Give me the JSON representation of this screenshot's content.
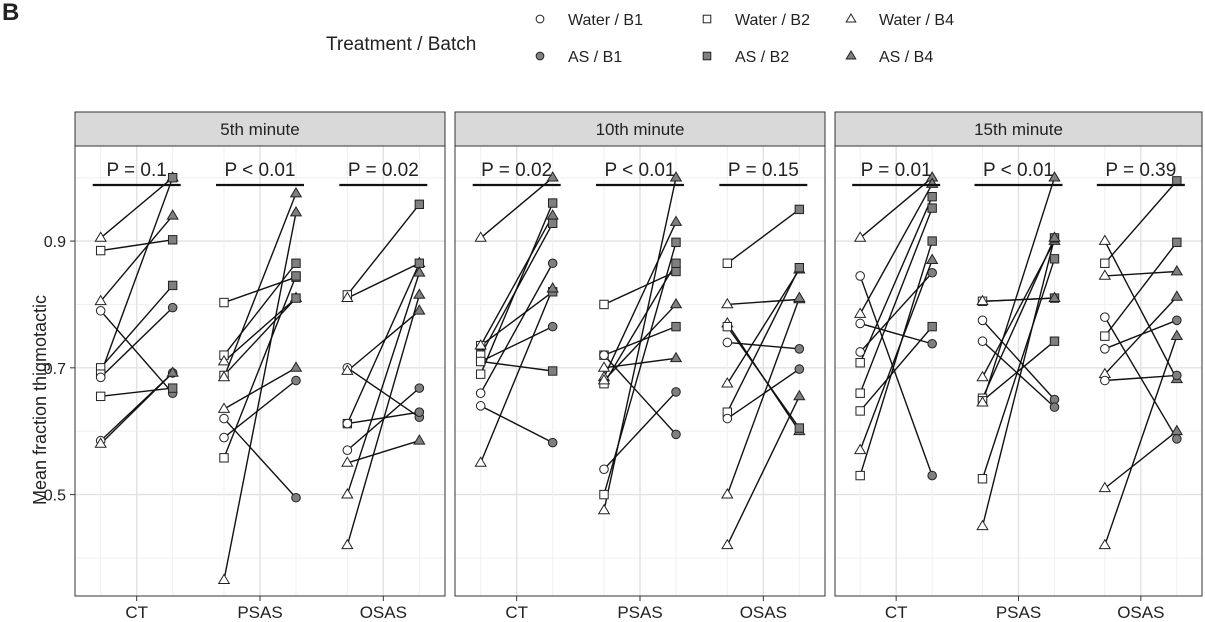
{
  "figure": {
    "panel_letter": "B"
  },
  "chart_data": {
    "type": "scatter",
    "ylabel": "Mean fraction thigmotactic",
    "xlabel": "",
    "ylim": [
      0.34,
      1.05
    ],
    "yticks": [
      0.5,
      0.7,
      0.9
    ],
    "grid": true,
    "categories": [
      "CT",
      "PSAS",
      "OSAS"
    ],
    "legend": {
      "title": "Treatment / Batch",
      "placement": "top",
      "entries": [
        {
          "label": "Water / B1",
          "shape": "circle",
          "fill": "#ffffff"
        },
        {
          "label": "Water / B2",
          "shape": "square",
          "fill": "#ffffff"
        },
        {
          "label": "Water / B4",
          "shape": "triangle",
          "fill": "#ffffff"
        },
        {
          "label": "AS / B1",
          "shape": "circle",
          "fill": "#808080"
        },
        {
          "label": "AS / B2",
          "shape": "square",
          "fill": "#808080"
        },
        {
          "label": "AS / B4",
          "shape": "triangle",
          "fill": "#808080"
        }
      ]
    },
    "facets": [
      {
        "title": "5th minute",
        "pvalues": [
          "P = 0.1",
          "P < 0.01",
          "P = 0.02"
        ],
        "groups": [
          {
            "category": "CT",
            "pairs": [
              {
                "shape": "triangle",
                "water": 0.905,
                "as": 1.0
              },
              {
                "shape": "square",
                "water": 0.885,
                "as": 0.902
              },
              {
                "shape": "triangle",
                "water": 0.805,
                "as": 0.94
              },
              {
                "shape": "circle",
                "water": 0.79,
                "as": 0.66
              },
              {
                "shape": "square",
                "water": 0.7,
                "as": 0.83
              },
              {
                "shape": "square",
                "water": 0.69,
                "as": 1.0
              },
              {
                "shape": "circle",
                "water": 0.685,
                "as": 0.795
              },
              {
                "shape": "square",
                "water": 0.655,
                "as": 0.668
              },
              {
                "shape": "circle",
                "water": 0.585,
                "as": 0.692
              },
              {
                "shape": "triangle",
                "water": 0.58,
                "as": 0.692
              }
            ]
          },
          {
            "category": "PSAS",
            "pairs": [
              {
                "shape": "square",
                "water": 0.803,
                "as": 0.843
              },
              {
                "shape": "square",
                "water": 0.72,
                "as": 0.865
              },
              {
                "shape": "triangle",
                "water": 0.71,
                "as": 0.81
              },
              {
                "shape": "square",
                "water": 0.688,
                "as": 0.81
              },
              {
                "shape": "triangle",
                "water": 0.685,
                "as": 0.975
              },
              {
                "shape": "triangle",
                "water": 0.635,
                "as": 0.7
              },
              {
                "shape": "circle",
                "water": 0.62,
                "as": 0.495
              },
              {
                "shape": "circle",
                "water": 0.59,
                "as": 0.68
              },
              {
                "shape": "square",
                "water": 0.558,
                "as": 0.845
              },
              {
                "shape": "triangle",
                "water": 0.365,
                "as": 0.945
              }
            ]
          },
          {
            "category": "OSAS",
            "pairs": [
              {
                "shape": "square",
                "water": 0.815,
                "as": 0.958
              },
              {
                "shape": "triangle",
                "water": 0.81,
                "as": 0.865
              },
              {
                "shape": "circle",
                "water": 0.7,
                "as": 0.622
              },
              {
                "shape": "triangle",
                "water": 0.695,
                "as": 0.79
              },
              {
                "shape": "square",
                "water": 0.612,
                "as": 0.865
              },
              {
                "shape": "circle",
                "water": 0.612,
                "as": 0.63
              },
              {
                "shape": "circle",
                "water": 0.57,
                "as": 0.668
              },
              {
                "shape": "triangle",
                "water": 0.55,
                "as": 0.585
              },
              {
                "shape": "triangle",
                "water": 0.5,
                "as": 0.85
              },
              {
                "shape": "triangle",
                "water": 0.42,
                "as": 0.815
              }
            ]
          }
        ]
      },
      {
        "title": "10th minute",
        "pvalues": [
          "P = 0.02",
          "P < 0.01",
          "P = 0.15"
        ],
        "groups": [
          {
            "category": "CT",
            "pairs": [
              {
                "shape": "triangle",
                "water": 0.905,
                "as": 1.0
              },
              {
                "shape": "square",
                "water": 0.735,
                "as": 0.82
              },
              {
                "shape": "triangle",
                "water": 0.735,
                "as": 0.94
              },
              {
                "shape": "square",
                "water": 0.72,
                "as": 0.928
              },
              {
                "shape": "circle",
                "water": 0.71,
                "as": 0.765
              },
              {
                "shape": "square",
                "water": 0.71,
                "as": 0.695
              },
              {
                "shape": "square",
                "water": 0.69,
                "as": 0.96
              },
              {
                "shape": "circle",
                "water": 0.66,
                "as": 0.865
              },
              {
                "shape": "circle",
                "water": 0.64,
                "as": 0.582
              },
              {
                "shape": "triangle",
                "water": 0.55,
                "as": 0.825
              }
            ]
          },
          {
            "category": "PSAS",
            "pairs": [
              {
                "shape": "square",
                "water": 0.8,
                "as": 0.852
              },
              {
                "shape": "square",
                "water": 0.72,
                "as": 0.765
              },
              {
                "shape": "circle",
                "water": 0.72,
                "as": 0.595
              },
              {
                "shape": "triangle",
                "water": 0.7,
                "as": 0.715
              },
              {
                "shape": "triangle",
                "water": 0.685,
                "as": 0.93
              },
              {
                "shape": "square",
                "water": 0.675,
                "as": 0.865
              },
              {
                "shape": "triangle",
                "water": 0.68,
                "as": 0.8
              },
              {
                "shape": "circle",
                "water": 0.54,
                "as": 0.662
              },
              {
                "shape": "square",
                "water": 0.5,
                "as": 0.898
              },
              {
                "shape": "triangle",
                "water": 0.475,
                "as": 1.0
              }
            ]
          },
          {
            "category": "OSAS",
            "pairs": [
              {
                "shape": "square",
                "water": 0.865,
                "as": 0.95
              },
              {
                "shape": "triangle",
                "water": 0.8,
                "as": 0.808
              },
              {
                "shape": "triangle",
                "water": 0.77,
                "as": 0.6
              },
              {
                "shape": "square",
                "water": 0.765,
                "as": 0.605
              },
              {
                "shape": "circle",
                "water": 0.74,
                "as": 0.73
              },
              {
                "shape": "triangle",
                "water": 0.675,
                "as": 0.855
              },
              {
                "shape": "square",
                "water": 0.63,
                "as": 0.858
              },
              {
                "shape": "circle",
                "water": 0.62,
                "as": 0.698
              },
              {
                "shape": "triangle",
                "water": 0.5,
                "as": 0.81
              },
              {
                "shape": "triangle",
                "water": 0.42,
                "as": 0.655
              }
            ]
          }
        ]
      },
      {
        "title": "15th minute",
        "pvalues": [
          "P = 0.01",
          "P < 0.01",
          "P = 0.39"
        ],
        "groups": [
          {
            "category": "CT",
            "pairs": [
              {
                "shape": "triangle",
                "water": 0.905,
                "as": 1.0
              },
              {
                "shape": "circle",
                "water": 0.845,
                "as": 0.53
              },
              {
                "shape": "triangle",
                "water": 0.785,
                "as": 0.99
              },
              {
                "shape": "circle",
                "water": 0.77,
                "as": 0.738
              },
              {
                "shape": "circle",
                "water": 0.725,
                "as": 0.85
              },
              {
                "shape": "square",
                "water": 0.708,
                "as": 0.97
              },
              {
                "shape": "square",
                "water": 0.66,
                "as": 0.952
              },
              {
                "shape": "square",
                "water": 0.632,
                "as": 0.765
              },
              {
                "shape": "triangle",
                "water": 0.57,
                "as": 0.87
              },
              {
                "shape": "square",
                "water": 0.53,
                "as": 0.9
              }
            ]
          },
          {
            "category": "PSAS",
            "pairs": [
              {
                "shape": "square",
                "water": 0.805,
                "as": 0.81
              },
              {
                "shape": "triangle",
                "water": 0.805,
                "as": 0.81
              },
              {
                "shape": "circle",
                "water": 0.775,
                "as": 0.65
              },
              {
                "shape": "circle",
                "water": 0.742,
                "as": 0.638
              },
              {
                "shape": "triangle",
                "water": 0.685,
                "as": 0.9
              },
              {
                "shape": "square",
                "water": 0.652,
                "as": 0.905
              },
              {
                "shape": "square",
                "water": 0.648,
                "as": 0.742
              },
              {
                "shape": "triangle",
                "water": 0.645,
                "as": 1.0
              },
              {
                "shape": "square",
                "water": 0.525,
                "as": 0.872
              },
              {
                "shape": "triangle",
                "water": 0.45,
                "as": 0.905
              }
            ]
          },
          {
            "category": "OSAS",
            "pairs": [
              {
                "shape": "square",
                "water": 0.865,
                "as": 0.995
              },
              {
                "shape": "triangle",
                "water": 0.9,
                "as": 0.682
              },
              {
                "shape": "triangle",
                "water": 0.845,
                "as": 0.852
              },
              {
                "shape": "circle",
                "water": 0.78,
                "as": 0.588
              },
              {
                "shape": "square",
                "water": 0.75,
                "as": 0.898
              },
              {
                "shape": "circle",
                "water": 0.73,
                "as": 0.775
              },
              {
                "shape": "triangle",
                "water": 0.69,
                "as": 0.812
              },
              {
                "shape": "circle",
                "water": 0.68,
                "as": 0.688
              },
              {
                "shape": "triangle",
                "water": 0.51,
                "as": 0.6
              },
              {
                "shape": "triangle",
                "water": 0.42,
                "as": 0.75
              }
            ]
          }
        ]
      }
    ]
  }
}
